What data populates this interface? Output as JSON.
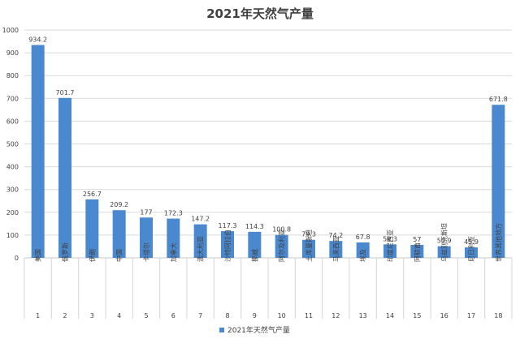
{
  "chart_data": {
    "type": "bar",
    "title": "2021年天然气产量",
    "categories": [
      "美国",
      "俄罗斯",
      "伊朗",
      "中国",
      "卡塔尔",
      "加拿大",
      "澳大利亚",
      "沙特阿拉伯",
      "挪威",
      "阿尔及利亚",
      "土库曼斯坦",
      "马来西亚",
      "埃及",
      "印度尼西亚",
      "阿联酋",
      "乌兹别克斯坦",
      "尼日利亚",
      "世界其他地方"
    ],
    "index_labels": [
      "1",
      "2",
      "3",
      "4",
      "5",
      "6",
      "7",
      "8",
      "9",
      "10",
      "11",
      "12",
      "13",
      "14",
      "15",
      "16",
      "17",
      "18"
    ],
    "series": [
      {
        "name": "2021年天然气产量",
        "values": [
          934.2,
          701.7,
          256.7,
          209.2,
          177,
          172.3,
          147.2,
          117.3,
          114.3,
          100.8,
          79.3,
          74.2,
          67.8,
          59.3,
          57,
          50.9,
          45.9,
          671.8
        ]
      }
    ],
    "data_labels": [
      "934.2",
      "701.7",
      "256.7",
      "209.2",
      "177",
      "172.3",
      "147.2",
      "117.3",
      "114.3",
      "100.8",
      "79.3",
      "74.2",
      "67.8",
      "59.3",
      "57",
      "50.9",
      "45.9",
      "671.8"
    ],
    "ylim": [
      0,
      1000
    ],
    "yticks": [
      "0",
      "100",
      "200",
      "300",
      "400",
      "500",
      "600",
      "700",
      "800",
      "900",
      "1000"
    ],
    "grid": true,
    "legend_position": "bottom",
    "bar_color": "#4a89cf"
  }
}
